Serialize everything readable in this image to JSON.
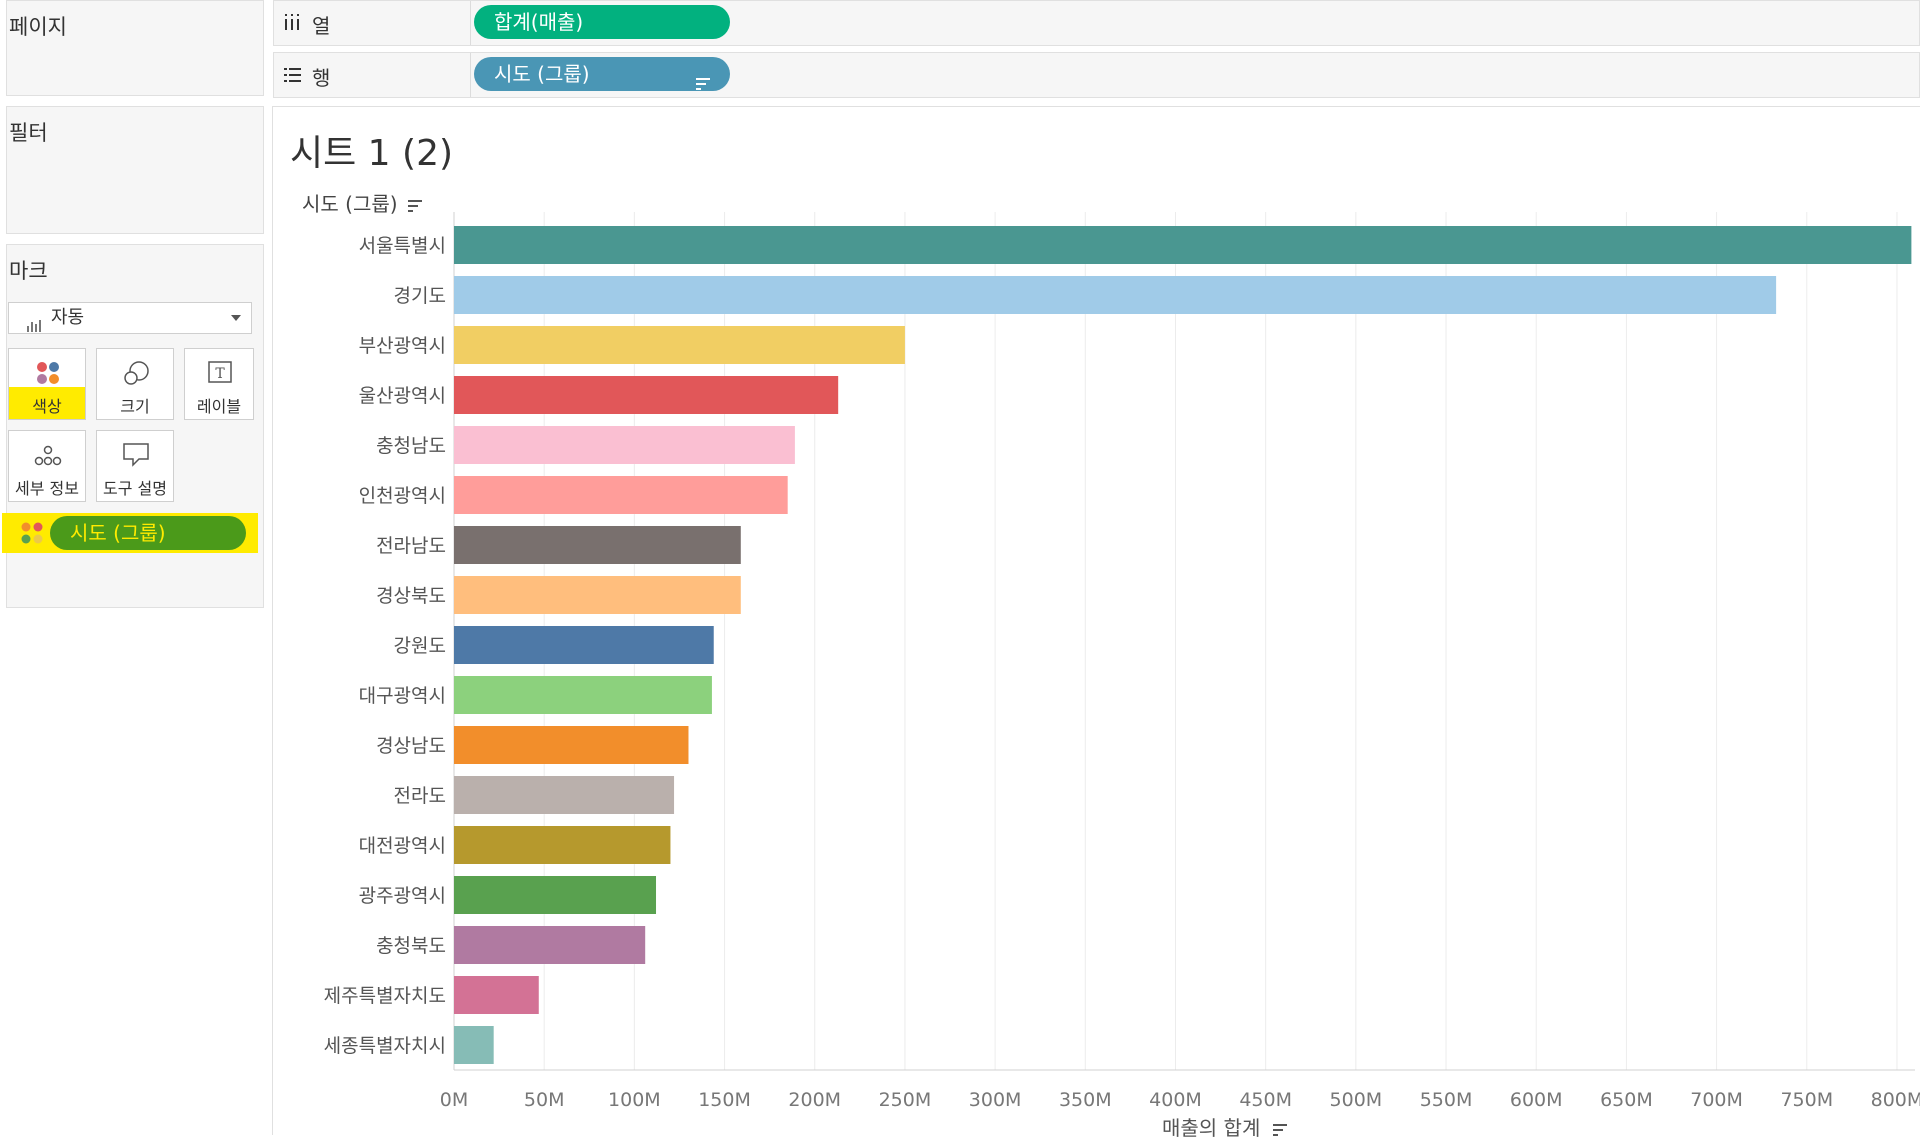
{
  "left_panel": {
    "pages_title": "페이지",
    "filters_title": "필터",
    "marks_title": "마크",
    "mark_type": "자동",
    "mark_buttons": [
      {
        "label": "색상",
        "icon": "color-dots-icon",
        "highlighted": true
      },
      {
        "label": "크기",
        "icon": "size-circles-icon",
        "highlighted": false
      },
      {
        "label": "레이블",
        "icon": "label-t-icon",
        "highlighted": false
      },
      {
        "label": "세부 정보",
        "icon": "detail-dots-icon",
        "highlighted": false
      },
      {
        "label": "도구 설명",
        "icon": "tooltip-bubble-icon",
        "highlighted": false
      }
    ],
    "color_pill": "시도 (그룹)"
  },
  "shelves": {
    "columns_label": "열",
    "columns_pill": "합계(매출)",
    "rows_label": "행",
    "rows_pill": "시도 (그룹)"
  },
  "colors": {
    "columns_pill": "#02b17f",
    "rows_pill": "#4a96b5",
    "color_pill": "#4b9a1a",
    "highlight": "#ffeb00"
  },
  "sheet_title": "시트 1 (2)",
  "chart_data": {
    "type": "bar",
    "orientation": "horizontal",
    "row_header": "시도 (그룹)",
    "xlabel": "매출의 합계",
    "xlim": [
      0,
      810
    ],
    "x_unit": "M",
    "x_ticks": [
      "0M",
      "50M",
      "100M",
      "150M",
      "200M",
      "250M",
      "300M",
      "350M",
      "400M",
      "450M",
      "500M",
      "550M",
      "600M",
      "650M",
      "700M",
      "750M",
      "800M"
    ],
    "grid": true,
    "categories": [
      "서울특별시",
      "경기도",
      "부산광역시",
      "울산광역시",
      "충청남도",
      "인천광역시",
      "전라남도",
      "경상북도",
      "강원도",
      "대구광역시",
      "경상남도",
      "전라도",
      "대전광역시",
      "광주광역시",
      "충청북도",
      "제주특별자치도",
      "세종특별자치시"
    ],
    "values": [
      808,
      733,
      250,
      213,
      189,
      185,
      159,
      159,
      144,
      143,
      130,
      122,
      120,
      112,
      106,
      47,
      22
    ],
    "bar_colors": [
      "#4a9791",
      "#a0cbe8",
      "#f1ce63",
      "#e15759",
      "#fabfd2",
      "#ff9d9a",
      "#79706e",
      "#ffbe7d",
      "#4e79a7",
      "#8cd17d",
      "#f28e2b",
      "#bab0ac",
      "#b6992d",
      "#59a14f",
      "#b07aa1",
      "#d37295",
      "#86bcb6"
    ]
  }
}
